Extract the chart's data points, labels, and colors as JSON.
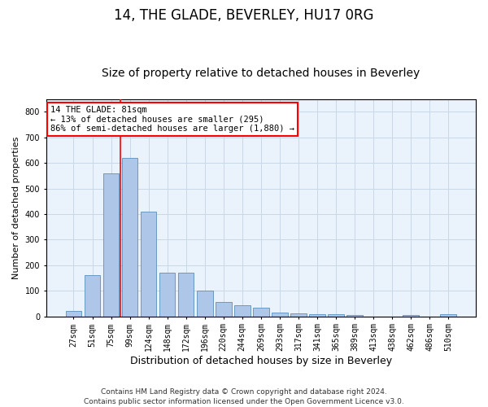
{
  "title": "14, THE GLADE, BEVERLEY, HU17 0RG",
  "subtitle": "Size of property relative to detached houses in Beverley",
  "xlabel": "Distribution of detached houses by size in Beverley",
  "ylabel": "Number of detached properties",
  "categories": [
    "27sqm",
    "51sqm",
    "75sqm",
    "99sqm",
    "124sqm",
    "148sqm",
    "172sqm",
    "196sqm",
    "220sqm",
    "244sqm",
    "269sqm",
    "293sqm",
    "317sqm",
    "341sqm",
    "365sqm",
    "389sqm",
    "413sqm",
    "438sqm",
    "462sqm",
    "486sqm",
    "510sqm"
  ],
  "values": [
    20,
    162,
    560,
    620,
    410,
    170,
    170,
    102,
    55,
    43,
    33,
    14,
    12,
    8,
    8,
    5,
    0,
    0,
    4,
    0,
    7
  ],
  "bar_color": "#AEC6E8",
  "bar_edge_color": "#5A8FBB",
  "annotation_text": "14 THE GLADE: 81sqm\n← 13% of detached houses are smaller (295)\n86% of semi-detached houses are larger (1,880) →",
  "annotation_box_color": "white",
  "annotation_box_edge_color": "red",
  "vline_color": "red",
  "vline_x_index": 2.5,
  "ylim": [
    0,
    850
  ],
  "yticks": [
    0,
    100,
    200,
    300,
    400,
    500,
    600,
    700,
    800
  ],
  "grid_color": "#C8D8E8",
  "background_color": "#EAF2FB",
  "footer": "Contains HM Land Registry data © Crown copyright and database right 2024.\nContains public sector information licensed under the Open Government Licence v3.0.",
  "title_fontsize": 12,
  "subtitle_fontsize": 10,
  "xlabel_fontsize": 9,
  "ylabel_fontsize": 8,
  "tick_fontsize": 7,
  "footer_fontsize": 6.5,
  "annotation_fontsize": 7.5
}
